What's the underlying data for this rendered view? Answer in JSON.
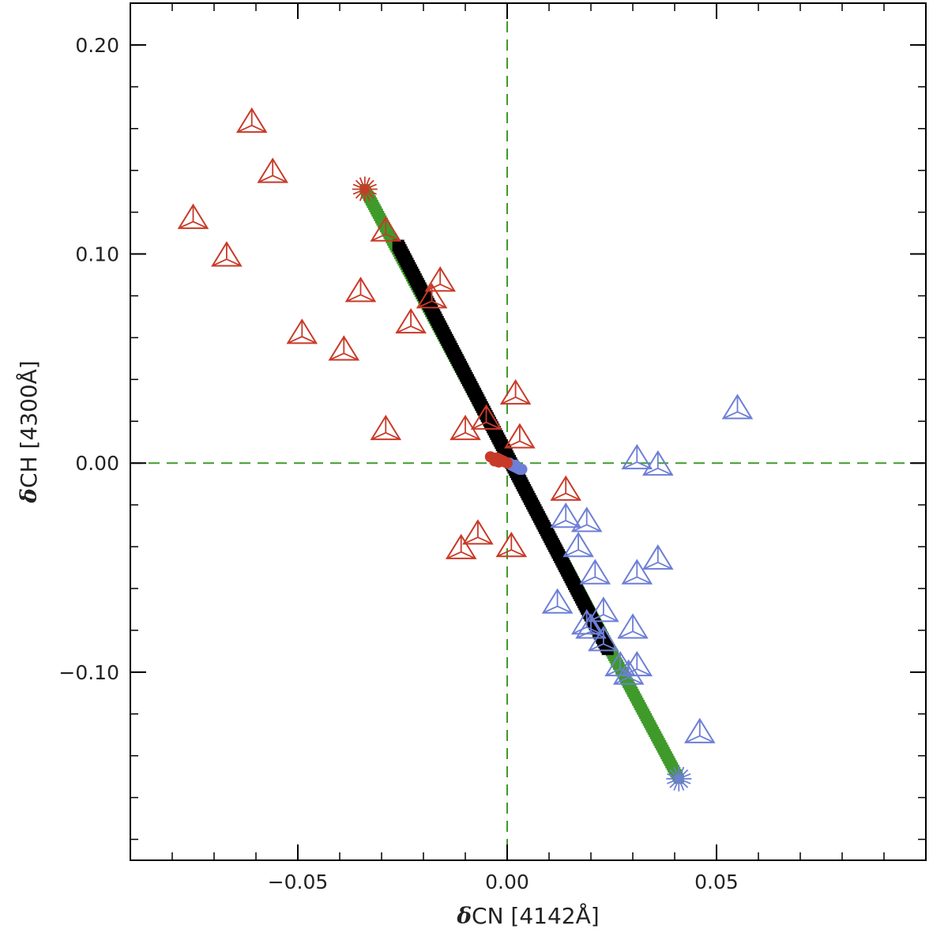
{
  "chart_data": {
    "type": "scatter",
    "xlabel": {
      "symbol": "δ",
      "text": "CN [4142Å]"
    },
    "ylabel": {
      "symbol": "δ",
      "text": "CH [4300Å]"
    },
    "xlim": [
      -0.09,
      0.1
    ],
    "ylim": [
      -0.19,
      0.22
    ],
    "x_ticks": [
      {
        "value": -0.05,
        "label": "−0.05"
      },
      {
        "value": 0.0,
        "label": "0.00"
      },
      {
        "value": 0.05,
        "label": "0.05"
      }
    ],
    "y_ticks": [
      {
        "value": -0.1,
        "label": "−0.10"
      },
      {
        "value": 0.0,
        "label": "0.00"
      },
      {
        "value": 0.1,
        "label": "0.10"
      },
      {
        "value": 0.2,
        "label": "0.20"
      }
    ],
    "x_minor_step": 0.01,
    "y_minor_step": 0.02,
    "reference_lines": {
      "x": 0,
      "y": 0,
      "color": "#3f9a2a",
      "style": "dashed"
    },
    "colors": {
      "red": "#c83a28",
      "blue": "#6d7fd6",
      "green": "#3f9a2a",
      "black": "#000000"
    },
    "series": [
      {
        "marker": "triangle",
        "color": "#c83a28",
        "points": [
          [
            -0.061,
            0.163
          ],
          [
            -0.056,
            0.139
          ],
          [
            -0.075,
            0.117
          ],
          [
            -0.067,
            0.099
          ],
          [
            -0.035,
            0.082
          ],
          [
            -0.049,
            0.062
          ],
          [
            -0.039,
            0.054
          ],
          [
            -0.029,
            0.016
          ],
          [
            -0.029,
            0.111
          ],
          [
            -0.016,
            0.087
          ],
          [
            -0.018,
            0.079
          ],
          [
            -0.023,
            0.067
          ],
          [
            0.002,
            0.033
          ],
          [
            -0.005,
            0.021
          ],
          [
            -0.01,
            0.016
          ],
          [
            0.003,
            0.012
          ],
          [
            0.014,
            -0.013
          ],
          [
            -0.007,
            -0.034
          ],
          [
            -0.011,
            -0.041
          ],
          [
            0.001,
            -0.04
          ]
        ]
      },
      {
        "marker": "triangle",
        "color": "#6d7fd6",
        "points": [
          [
            0.055,
            0.026
          ],
          [
            0.031,
            0.002
          ],
          [
            0.036,
            -0.001
          ],
          [
            0.014,
            -0.026
          ],
          [
            0.019,
            -0.028
          ],
          [
            0.017,
            -0.04
          ],
          [
            0.021,
            -0.053
          ],
          [
            0.031,
            -0.053
          ],
          [
            0.036,
            -0.046
          ],
          [
            0.012,
            -0.067
          ],
          [
            0.023,
            -0.071
          ],
          [
            0.019,
            -0.077
          ],
          [
            0.02,
            -0.079
          ],
          [
            0.03,
            -0.079
          ],
          [
            0.023,
            -0.085
          ],
          [
            0.027,
            -0.097
          ],
          [
            0.031,
            -0.097
          ],
          [
            0.029,
            -0.101
          ],
          [
            0.046,
            -0.129
          ]
        ]
      },
      {
        "marker": "square-line",
        "color": "#3f9a2a",
        "points": [
          [
            -0.034,
            0.131
          ],
          [
            0.041,
            -0.151
          ]
        ]
      },
      {
        "marker": "square-line",
        "color": "#000000",
        "points": [
          [
            -0.026,
            0.104
          ],
          [
            0.024,
            -0.089
          ]
        ]
      },
      {
        "marker": "asterisk",
        "color": "#c83a28",
        "points": [
          [
            -0.034,
            0.131
          ]
        ]
      },
      {
        "marker": "asterisk",
        "color": "#6d7fd6",
        "points": [
          [
            0.041,
            -0.151
          ]
        ]
      },
      {
        "marker": "dot-cluster",
        "color": "#6d7fd6",
        "points": [
          [
            0.0005,
            0.0
          ],
          [
            0.001,
            -0.001
          ],
          [
            0.0015,
            -0.0015
          ],
          [
            0.002,
            -0.002
          ],
          [
            0.0025,
            -0.0025
          ],
          [
            0.003,
            -0.003
          ],
          [
            0.0035,
            -0.003
          ],
          [
            0.002,
            -0.001
          ]
        ]
      },
      {
        "marker": "dot-cluster",
        "color": "#c83a28",
        "points": [
          [
            -0.004,
            0.003
          ],
          [
            -0.0035,
            0.0025
          ],
          [
            -0.003,
            0.002
          ],
          [
            -0.0025,
            0.0025
          ],
          [
            -0.002,
            0.002
          ],
          [
            -0.0015,
            0.0015
          ],
          [
            -0.001,
            0.001
          ],
          [
            -0.0005,
            0.0005
          ],
          [
            -0.003,
            0.001
          ],
          [
            -0.002,
            0.0005
          ],
          [
            0.0,
            0.0
          ]
        ]
      }
    ]
  }
}
